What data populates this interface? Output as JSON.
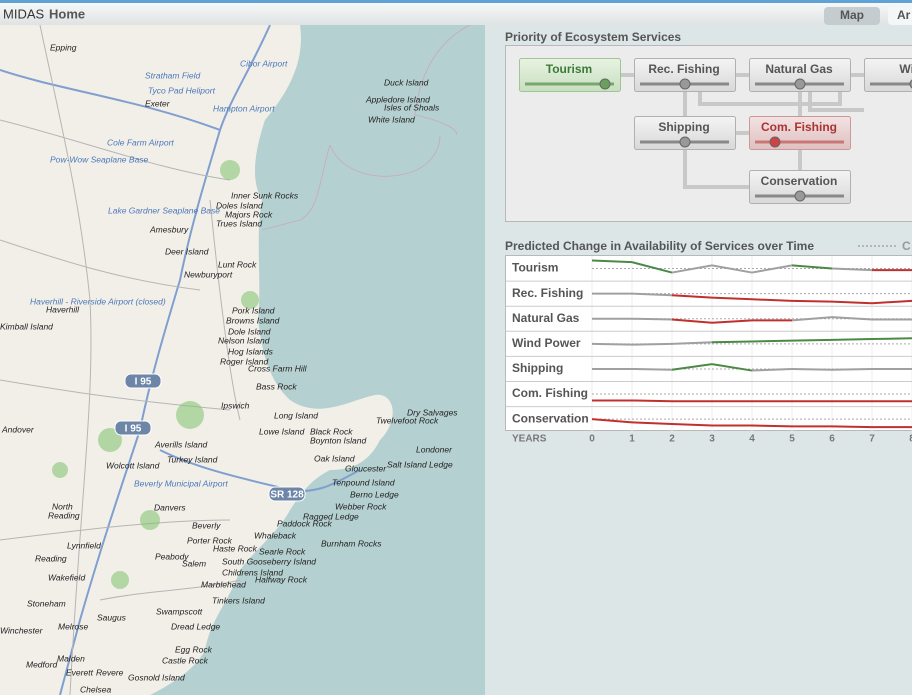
{
  "header": {
    "app": "MIDAS",
    "home": "Home",
    "tabs": [
      "Map",
      "Ar"
    ]
  },
  "map": {
    "labels": [
      "Epping",
      "Stratham Field",
      "Cibor Airport",
      "Tyco Pad Heliport",
      "Exeter",
      "Hampton Airport",
      "Duck Island",
      "Appledore Island",
      "Isles of Shoals",
      "White Island",
      "Cole Farm Airport",
      "Pow-Wow Seaplane Base",
      "Inner Sunk Rocks",
      "Doles Island",
      "Majors Rock",
      "Trues Island",
      "Lake Gardner Seaplane Base",
      "Amesbury",
      "Deer Island",
      "Lunt Rock",
      "Newburyport",
      "Haverhill - Riverside Airport (closed)",
      "Haverhill",
      "Pork Island",
      "Browns Island",
      "Kimball Island",
      "Dole Island",
      "Nelson Island",
      "Hog Islands",
      "Roger Island",
      "Cross Farm Hill",
      "Bass Rock",
      "Ipswich",
      "Dry Salvages",
      "Long Island",
      "Twelvefoot Rock",
      "Lowe Island",
      "Black Rock",
      "Andover",
      "Boynton Island",
      "Averills Island",
      "Londoner",
      "Turkey Island",
      "Oak Island",
      "Wolcott Island",
      "Gloucester",
      "Salt Island Ledge",
      "Beverly Municipal Airport",
      "Tenpound Island",
      "Berno Ledge",
      "North",
      "Reading",
      "Danvers",
      "Webber Rock",
      "Ragged Ledge",
      "Paddock Rock",
      "Beverly",
      "Whaleback",
      "Lynnfield",
      "Porter Rock",
      "Burnham Rocks",
      "Haste Rock",
      "Peabody",
      "Searle Rock",
      "Reading",
      "Salem",
      "South Gooseberry Island",
      "Childrens Island",
      "Wakefield",
      "Halfway Rock",
      "Marblehead",
      "Tinkers Island",
      "Stoneham",
      "Swampscott",
      "Saugus",
      "Dread Ledge",
      "Melrose",
      "Winchester",
      "Malden",
      "Egg Rock",
      "Medford",
      "Everett",
      "Revere",
      "Castle Rock",
      "Gosnold Island",
      "Chelsea"
    ],
    "shields": [
      "I 95",
      "I 95",
      "SR 128"
    ]
  },
  "priority": {
    "title": "Priority of Ecosystem Services",
    "nodes": [
      "Tourism",
      "Rec. Fishing",
      "Natural Gas",
      "Wind",
      "Shipping",
      "Com. Fishing",
      "Conservation"
    ]
  },
  "chart_data": {
    "type": "line",
    "title": "Predicted Change in Availability of Services over Time",
    "legend": "C",
    "x_label": "YEARS",
    "categories": [
      "0",
      "1",
      "2",
      "3",
      "4",
      "5",
      "6",
      "7",
      "8"
    ],
    "series": [
      {
        "name": "Tourism",
        "values": [
          1,
          0.8,
          -0.5,
          0.4,
          -0.5,
          0.4,
          0,
          -0.2,
          -0.2
        ]
      },
      {
        "name": "Rec. Fishing",
        "values": [
          0,
          0,
          -0.2,
          -0.5,
          -0.7,
          -0.9,
          -1,
          -1.2,
          -0.9
        ]
      },
      {
        "name": "Natural Gas",
        "values": [
          0,
          0,
          -0.1,
          -0.5,
          -0.2,
          -0.2,
          0.2,
          -0.1,
          -0.1
        ]
      },
      {
        "name": "Wind Power",
        "values": [
          0,
          -0.1,
          0,
          0.2,
          0.3,
          0.4,
          0.5,
          0.6,
          0.7
        ]
      },
      {
        "name": "Shipping",
        "values": [
          0,
          0,
          -0.1,
          0.6,
          -0.2,
          0,
          -0.1,
          0,
          0
        ]
      },
      {
        "name": "Com. Fishing",
        "values": [
          -0.8,
          -0.8,
          -0.9,
          -0.9,
          -0.9,
          -0.9,
          -0.9,
          -0.9,
          -0.9
        ]
      },
      {
        "name": "Conservation",
        "values": [
          0,
          -0.4,
          -0.6,
          -0.8,
          -0.8,
          -0.9,
          -0.9,
          -1,
          -1
        ]
      }
    ]
  }
}
